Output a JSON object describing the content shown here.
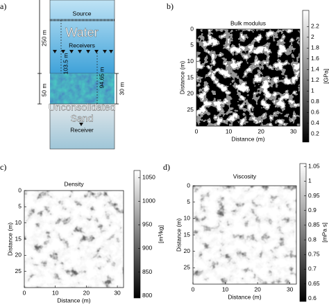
{
  "panel_a": {
    "label": "a)",
    "source": "Source",
    "water": "Water",
    "receivers": "Receivers",
    "sand_line1": "Unconsolidated",
    "sand_line2": "Sand",
    "receiver": "Receiver",
    "depth_water": "250 m",
    "depth_sand": "50 m",
    "offset_source": "103.5 m",
    "offset_receivers": "94.65 m",
    "thickness": "30 m"
  },
  "chart_data": [
    {
      "type": "heatmap",
      "panel_label": "b)",
      "title": "Bulk modulus",
      "xlabel": "Distance (m)",
      "ylabel": "Distance (m)",
      "xlim": [
        0,
        32
      ],
      "ylim": [
        0,
        30
      ],
      "xticks": [
        0,
        10,
        20,
        30
      ],
      "yticks": [
        0,
        5,
        10,
        15,
        20,
        25
      ],
      "colorbar_label": "[GPa]",
      "clim": [
        0.05,
        2.5
      ],
      "cticks": [
        0.2,
        0.4,
        0.6,
        0.8,
        1,
        1.2,
        1.4,
        1.6,
        1.8,
        2,
        2.2
      ]
    },
    {
      "type": "heatmap",
      "panel_label": "c)",
      "title": "Density",
      "xlabel": "Distance (m)",
      "ylabel": "Distance (m)",
      "xlim": [
        0,
        32
      ],
      "ylim": [
        0,
        30
      ],
      "xticks": [
        0,
        10,
        20,
        30
      ],
      "yticks": [
        0,
        5,
        10,
        15,
        20,
        25
      ],
      "colorbar_label": "[m³/kg]",
      "clim": [
        795,
        1065
      ],
      "cticks": [
        800,
        850,
        900,
        950,
        1000,
        1050
      ]
    },
    {
      "type": "heatmap",
      "panel_label": "d)",
      "title": "Viscosity",
      "xlabel": "Distance (m)",
      "ylabel": "Distance (m)",
      "xlim": [
        0,
        32
      ],
      "ylim": [
        0,
        30
      ],
      "xticks": [
        0,
        10,
        20,
        30
      ],
      "yticks": [
        0,
        5,
        10,
        15,
        20,
        25
      ],
      "colorbar_label": "[mPa s]",
      "clim": [
        0.59,
        1.06
      ],
      "cticks": [
        0.6,
        0.65,
        0.7,
        0.75,
        0.8,
        0.85,
        0.9,
        0.95,
        1,
        1.05
      ]
    }
  ]
}
